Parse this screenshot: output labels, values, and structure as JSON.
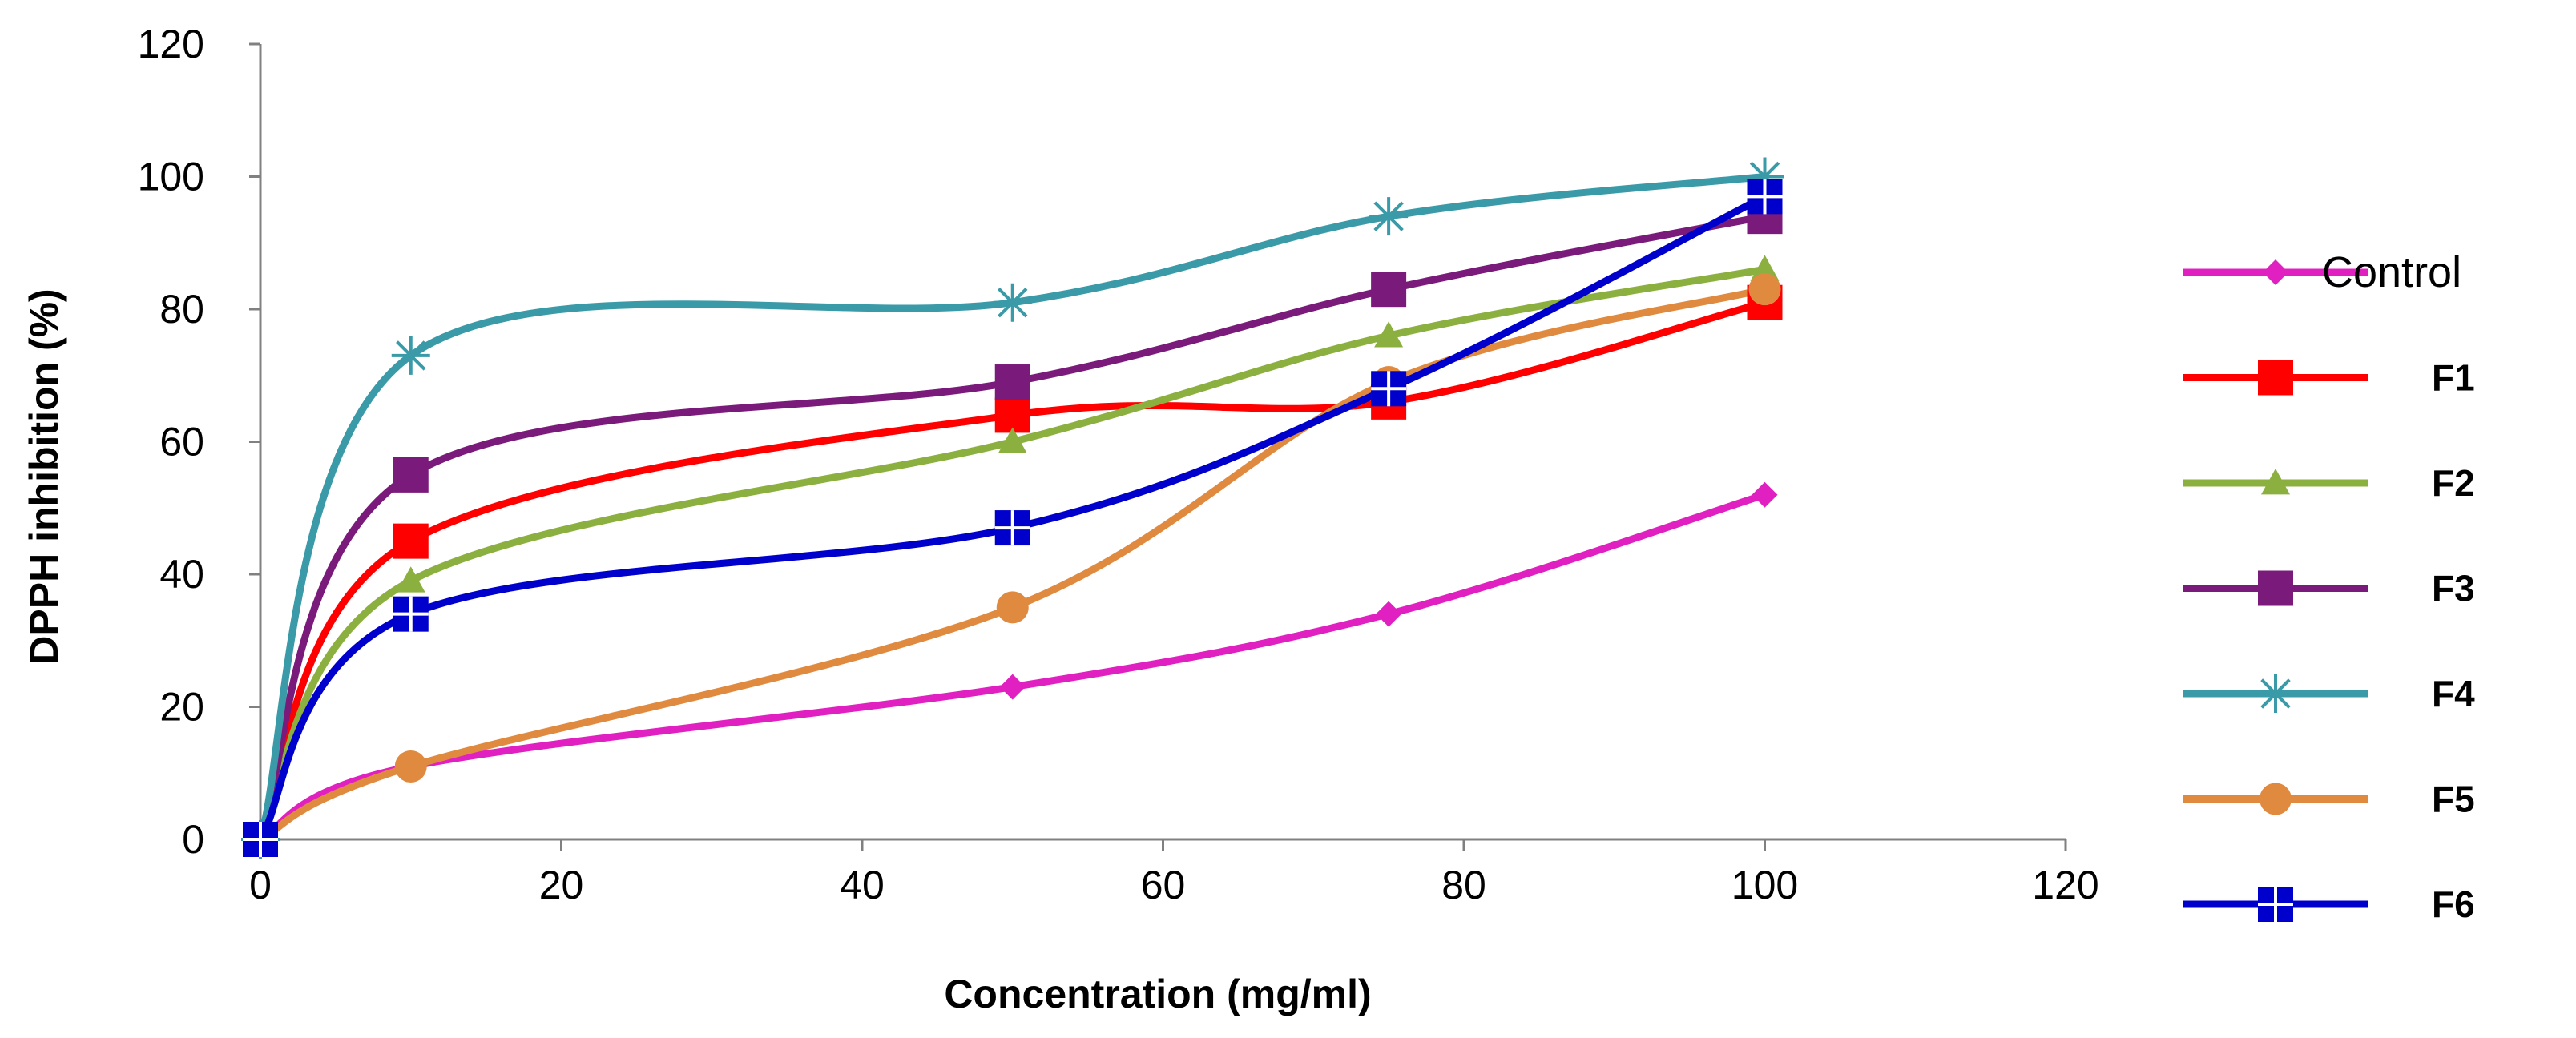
{
  "chart_data": {
    "type": "line",
    "title": "",
    "xlabel": "Concentration (mg/ml)",
    "ylabel": "DPPH inhibition (%)",
    "xlim": [
      0,
      120
    ],
    "ylim": [
      0,
      120
    ],
    "xticks": [
      0,
      20,
      40,
      60,
      80,
      100,
      120
    ],
    "yticks": [
      0,
      20,
      40,
      60,
      80,
      100,
      120
    ],
    "grid": false,
    "legend_position": "right",
    "x": [
      0,
      10,
      50,
      75,
      100
    ],
    "series": [
      {
        "name": "Control",
        "color": "#e020c0",
        "marker": "diamond",
        "values": [
          0,
          11,
          23,
          34,
          52
        ]
      },
      {
        "name": "F1",
        "color": "#ff0000",
        "marker": "square",
        "values": [
          0,
          45,
          64,
          66,
          81
        ]
      },
      {
        "name": "F2",
        "color": "#8cb040",
        "marker": "triangle",
        "values": [
          0,
          39,
          60,
          76,
          86
        ]
      },
      {
        "name": "F3",
        "color": "#7a1a7a",
        "marker": "square",
        "values": [
          0,
          55,
          69,
          83,
          94
        ]
      },
      {
        "name": "F4",
        "color": "#3a9aa8",
        "marker": "star",
        "values": [
          0,
          73,
          81,
          94,
          100
        ]
      },
      {
        "name": "F5",
        "color": "#e08a40",
        "marker": "circle",
        "values": [
          0,
          11,
          35,
          69,
          83
        ]
      },
      {
        "name": "F6",
        "color": "#0000cc",
        "marker": "plus-square",
        "values": [
          0,
          34,
          47,
          68,
          97
        ]
      }
    ]
  }
}
